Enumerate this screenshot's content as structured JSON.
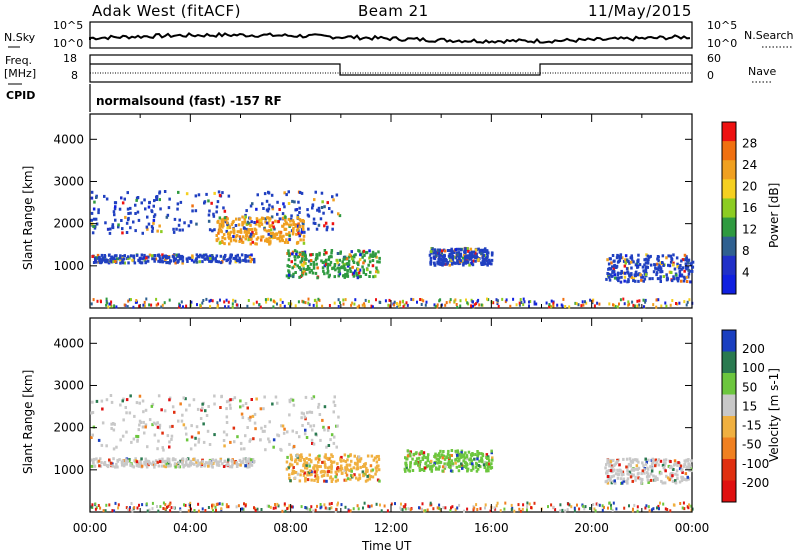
{
  "header": {
    "title_left": "Adak West (fitACF)",
    "title_center": "Beam 21",
    "title_right": "11/May/2015"
  },
  "top_strip": {
    "label_left_1": "N.Sky",
    "label_right_1": "N.Search",
    "label_left_2a": "Freq.",
    "label_left_2b": "[MHz]",
    "label_right_2": "Nave",
    "cpid_label": "CPID",
    "nsky_ticks": [
      "10^5",
      "10^0"
    ],
    "nsearch_ticks": [
      "10^5",
      "10^0"
    ],
    "freq_ticks": [
      "18",
      "8"
    ],
    "nave_ticks": [
      "60",
      "0"
    ],
    "cpid_text": "normalsound (fast) -157 RF"
  },
  "chart_data": [
    {
      "type": "heatmap",
      "name": "power_panel",
      "ylabel": "Slant Range [km]",
      "yticks": [
        "1000",
        "2000",
        "3000",
        "4000"
      ],
      "ylim": [
        0,
        4600
      ],
      "xlim": [
        0,
        24
      ],
      "colorbar_label": "Power [dB]",
      "colorbar_ticks": [
        "28",
        "24",
        "20",
        "16",
        "12",
        "8",
        "4"
      ],
      "colorbar_colors": [
        "#ee1111",
        "#f07010",
        "#f0a020",
        "#f5d020",
        "#8ccc22",
        "#2f9a40",
        "#2f6090",
        "#2030c8",
        "#1020e0"
      ],
      "echo_regions": [
        {
          "t0": 0.0,
          "t1": 10.0,
          "r0": 1800,
          "r1": 2800,
          "dominant": "#2040c0"
        },
        {
          "t0": 5.0,
          "t1": 8.5,
          "r0": 1550,
          "r1": 2200,
          "dominant": "#f0a020"
        },
        {
          "t0": 0.0,
          "t1": 6.5,
          "r0": 1100,
          "r1": 1300,
          "dominant": "#2040c0"
        },
        {
          "t0": 7.8,
          "t1": 11.5,
          "r0": 750,
          "r1": 1400,
          "dominant": "#2f9a40"
        },
        {
          "t0": 13.5,
          "t1": 16.0,
          "r0": 1050,
          "r1": 1450,
          "dominant": "#2040c0"
        },
        {
          "t0": 20.5,
          "t1": 24.0,
          "r0": 650,
          "r1": 1300,
          "dominant": "#2040c0"
        }
      ]
    },
    {
      "type": "heatmap",
      "name": "velocity_panel",
      "xlabel": "Time UT",
      "ylabel": "Slant Range [km]",
      "yticks": [
        "1000",
        "2000",
        "3000",
        "4000"
      ],
      "ylim": [
        0,
        4600
      ],
      "xlim": [
        0,
        24
      ],
      "xticks": [
        "00:00",
        "04:00",
        "08:00",
        "12:00",
        "16:00",
        "20:00",
        "00:00"
      ],
      "colorbar_label": "Velocity [m s-1]",
      "colorbar_ticks": [
        "200",
        "100",
        "50",
        "15",
        "-15",
        "-50",
        "-100",
        "-200"
      ],
      "colorbar_colors": [
        "#1a3fc0",
        "#2a7a50",
        "#6cc63e",
        "#c8c8c8",
        "#f0b040",
        "#f08020",
        "#e03010",
        "#e01010"
      ],
      "echo_regions": [
        {
          "t0": 0.0,
          "t1": 10.0,
          "r0": 1500,
          "r1": 2800,
          "dominant": "#c8c8c8"
        },
        {
          "t0": 0.0,
          "t1": 6.5,
          "r0": 1100,
          "r1": 1300,
          "dominant": "#c8c8c8"
        },
        {
          "t0": 7.8,
          "t1": 11.5,
          "r0": 750,
          "r1": 1400,
          "dominant": "#f0b040"
        },
        {
          "t0": 12.5,
          "t1": 16.0,
          "r0": 1000,
          "r1": 1500,
          "dominant": "#6cc63e"
        },
        {
          "t0": 20.5,
          "t1": 24.0,
          "r0": 700,
          "r1": 1300,
          "dominant": "#c8c8c8"
        }
      ]
    }
  ]
}
